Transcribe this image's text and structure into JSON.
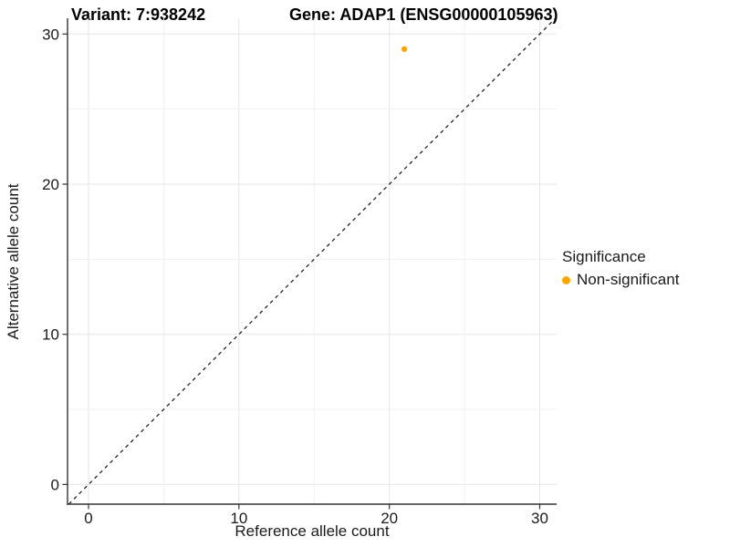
{
  "chart_data": {
    "type": "scatter",
    "title_left": "Variant: 7:938242",
    "title_right": "Gene: ADAP1 (ENSG00000105963)",
    "xlabel": "Reference allele count",
    "ylabel": "Alternative allele count",
    "xlim": [
      -1.4,
      31.1
    ],
    "ylim": [
      -1.4,
      31.1
    ],
    "xticks": [
      0,
      10,
      20,
      30
    ],
    "yticks": [
      0,
      10,
      20,
      30
    ],
    "minor_step": 5,
    "grid": "on",
    "reference_line": {
      "type": "identity",
      "slope": 1,
      "intercept": 0,
      "style": "dashed",
      "color": "#111111"
    },
    "points": [
      {
        "x": 21,
        "y": 29,
        "series": "Non-significant",
        "color": "#FFA500"
      }
    ],
    "legend": {
      "title": "Significance",
      "position": "right",
      "items": [
        {
          "label": "Non-significant",
          "color": "#FFA500",
          "marker": "circle"
        }
      ]
    },
    "colors": {
      "background": "#FFFFFF",
      "grid_major": "#E6E6E6",
      "grid_minor": "#F1F1F1",
      "axis_line": "#333333",
      "tick_text": "#1A1A1A",
      "title_text": "#000000"
    }
  }
}
